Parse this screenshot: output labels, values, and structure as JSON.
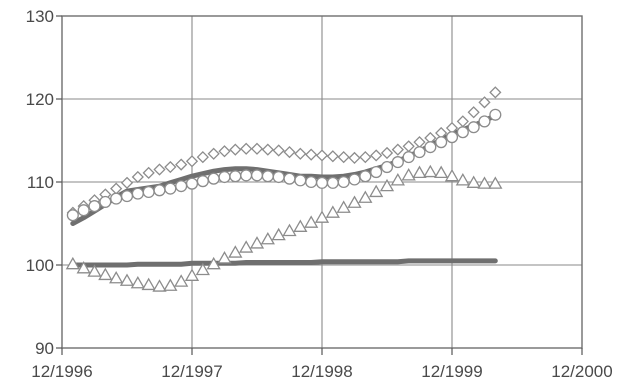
{
  "chart_data": {
    "type": "line",
    "title": "",
    "xlabel": "",
    "ylabel": "",
    "x_tick_labels": [
      "12/1996",
      "12/1997",
      "12/1998",
      "12/1999",
      "12/2000"
    ],
    "x_ticks": [
      "1996-12",
      "1997-12",
      "1998-12",
      "1999-12",
      "2000-12"
    ],
    "xlim": [
      "1996-12",
      "2000-12"
    ],
    "y_tick_labels": [
      "90",
      "100",
      "110",
      "120",
      "130"
    ],
    "y_ticks": [
      90,
      100,
      110,
      120,
      130
    ],
    "ylim": [
      90,
      130
    ],
    "grid": true,
    "legend": "none",
    "x": [
      "1997-01",
      "1997-02",
      "1997-03",
      "1997-04",
      "1997-05",
      "1997-06",
      "1997-07",
      "1997-08",
      "1997-09",
      "1997-10",
      "1997-11",
      "1997-12",
      "1998-01",
      "1998-02",
      "1998-03",
      "1998-04",
      "1998-05",
      "1998-06",
      "1998-07",
      "1998-08",
      "1998-09",
      "1998-10",
      "1998-11",
      "1998-12",
      "1999-01",
      "1999-02",
      "1999-03",
      "1999-04",
      "1999-05",
      "1999-06",
      "1999-07",
      "1999-08",
      "1999-09",
      "1999-10",
      "1999-11",
      "1999-12",
      "2000-01",
      "2000-02",
      "2000-03",
      "2000-04"
    ],
    "series": [
      {
        "marker": "diamond",
        "color": "#8c8c8c",
        "values": [
          106.3,
          107.1,
          107.8,
          108.5,
          109.2,
          109.9,
          110.6,
          111.1,
          111.5,
          111.8,
          112.1,
          112.5,
          113.0,
          113.4,
          113.7,
          113.9,
          114.0,
          114.0,
          113.9,
          113.8,
          113.6,
          113.4,
          113.3,
          113.2,
          113.1,
          113.0,
          112.9,
          113.0,
          113.2,
          113.5,
          113.9,
          114.3,
          114.8,
          115.3,
          115.9,
          116.5,
          117.3,
          118.4,
          119.6,
          120.8
        ]
      },
      {
        "marker": "circle",
        "color": "#8c8c8c",
        "values": [
          106.0,
          106.6,
          107.1,
          107.6,
          108.0,
          108.3,
          108.6,
          108.8,
          109.0,
          109.2,
          109.5,
          109.8,
          110.1,
          110.4,
          110.6,
          110.7,
          110.8,
          110.8,
          110.7,
          110.6,
          110.4,
          110.2,
          110.0,
          109.9,
          109.9,
          110.0,
          110.3,
          110.7,
          111.2,
          111.8,
          112.4,
          113.0,
          113.6,
          114.2,
          114.8,
          115.4,
          116.0,
          116.6,
          117.3,
          118.1
        ]
      },
      {
        "marker": "triangle",
        "color": "#8c8c8c",
        "values": [
          100.1,
          99.6,
          99.2,
          98.8,
          98.4,
          98.1,
          97.8,
          97.6,
          97.4,
          97.5,
          98.0,
          98.7,
          99.4,
          100.1,
          100.8,
          101.5,
          102.1,
          102.6,
          103.1,
          103.6,
          104.1,
          104.6,
          105.1,
          105.7,
          106.3,
          106.9,
          107.5,
          108.1,
          108.8,
          109.5,
          110.2,
          110.8,
          111.1,
          111.2,
          111.1,
          110.7,
          110.2,
          109.9,
          109.8,
          109.8
        ]
      },
      {
        "marker": "none",
        "color": "#6f6f6f",
        "values": [
          105.0,
          105.7,
          106.5,
          107.3,
          108.2,
          108.9,
          109.1,
          109.3,
          109.5,
          109.9,
          110.3,
          110.7,
          111.0,
          111.3,
          111.5,
          111.6,
          111.6,
          111.5,
          111.3,
          111.1,
          110.9,
          110.7,
          110.7,
          110.6,
          110.6,
          110.7,
          110.9,
          111.2,
          111.6,
          112.0,
          112.5,
          113.1,
          113.7,
          114.4,
          115.1,
          115.7,
          116.3,
          116.8,
          117.4,
          118.0
        ]
      },
      {
        "marker": "none",
        "color": "#6f6f6f",
        "values": [
          100.0,
          100.0,
          100.0,
          100.0,
          100.0,
          100.0,
          100.1,
          100.1,
          100.1,
          100.1,
          100.1,
          100.2,
          100.2,
          100.2,
          100.2,
          100.2,
          100.3,
          100.3,
          100.3,
          100.3,
          100.3,
          100.3,
          100.3,
          100.4,
          100.4,
          100.4,
          100.4,
          100.4,
          100.4,
          100.4,
          100.4,
          100.5,
          100.5,
          100.5,
          100.5,
          100.5,
          100.5,
          100.5,
          100.5,
          100.5
        ]
      }
    ]
  }
}
